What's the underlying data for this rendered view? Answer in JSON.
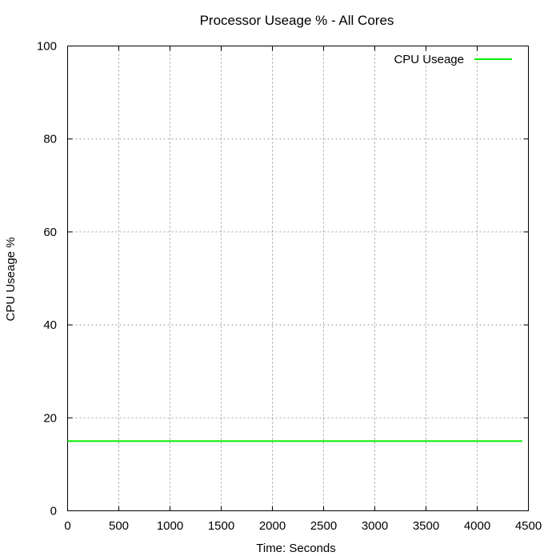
{
  "chart_data": {
    "type": "line",
    "title": "Processor Useage % - All Cores",
    "xlabel": "Time: Seconds",
    "ylabel": "CPU Useage %",
    "xlim": [
      0,
      4500
    ],
    "ylim": [
      0,
      100
    ],
    "xticks": [
      0,
      500,
      1000,
      1500,
      2000,
      2500,
      3000,
      3500,
      4000,
      4500
    ],
    "yticks": [
      0,
      20,
      40,
      60,
      80,
      100
    ],
    "grid": true,
    "legend_position": "top-right",
    "series": [
      {
        "name": "CPU Useage",
        "color": "#00ee00",
        "x": [
          0,
          4440
        ],
        "y": [
          15,
          15
        ]
      }
    ]
  }
}
